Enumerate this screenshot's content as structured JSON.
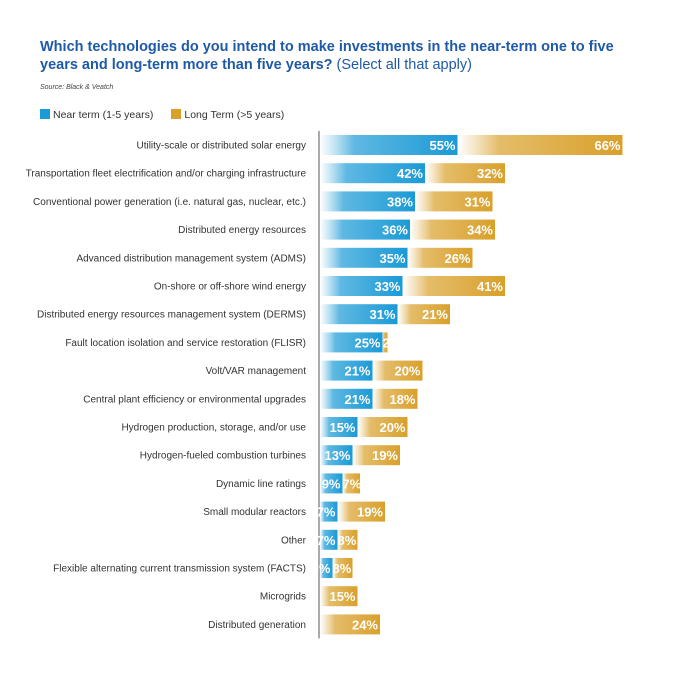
{
  "chart_data": {
    "type": "bar",
    "stacked": true,
    "orientation": "horizontal",
    "title": "Which technologies do you intend to make investments in the near-term one to five years and long-term more than five years?",
    "subtitle": "(Select all that apply)",
    "source": "Source: Black & Veatch",
    "legend_position": "top-left",
    "grid": false,
    "categories": [
      "Utility-scale or distributed solar energy",
      "Transportation fleet electrification and/or charging infrastructure",
      "Conventional power generation (i.e. natural gas, nuclear, etc.)",
      "Distributed energy resources",
      "Advanced distribution management system (ADMS)",
      "On-shore or off-shore wind energy",
      "Distributed energy resources management system (DERMS)",
      "Fault location isolation and service restoration (FLISR)",
      "Volt/VAR management",
      "Central plant efficiency or environmental upgrades",
      "Hydrogen production, storage, and/or use",
      "Hydrogen-fueled combustion turbines",
      "Dynamic line ratings",
      "Small modular reactors",
      "Other",
      "Flexible alternating current transmission system (FACTS)",
      "Microgrids",
      "Distributed generation"
    ],
    "series": [
      {
        "name": "Near term (1-5 years)",
        "color": "#1a9ad6",
        "values": [
          55,
          42,
          38,
          36,
          35,
          33,
          31,
          25,
          21,
          21,
          15,
          13,
          9,
          7,
          7,
          5,
          0,
          0
        ]
      },
      {
        "name": "Long Term (>5 years)",
        "color": "#d9a02a",
        "values": [
          66,
          32,
          31,
          34,
          26,
          41,
          21,
          2,
          20,
          18,
          20,
          19,
          7,
          19,
          8,
          8,
          15,
          24
        ]
      }
    ],
    "unit": "%"
  }
}
